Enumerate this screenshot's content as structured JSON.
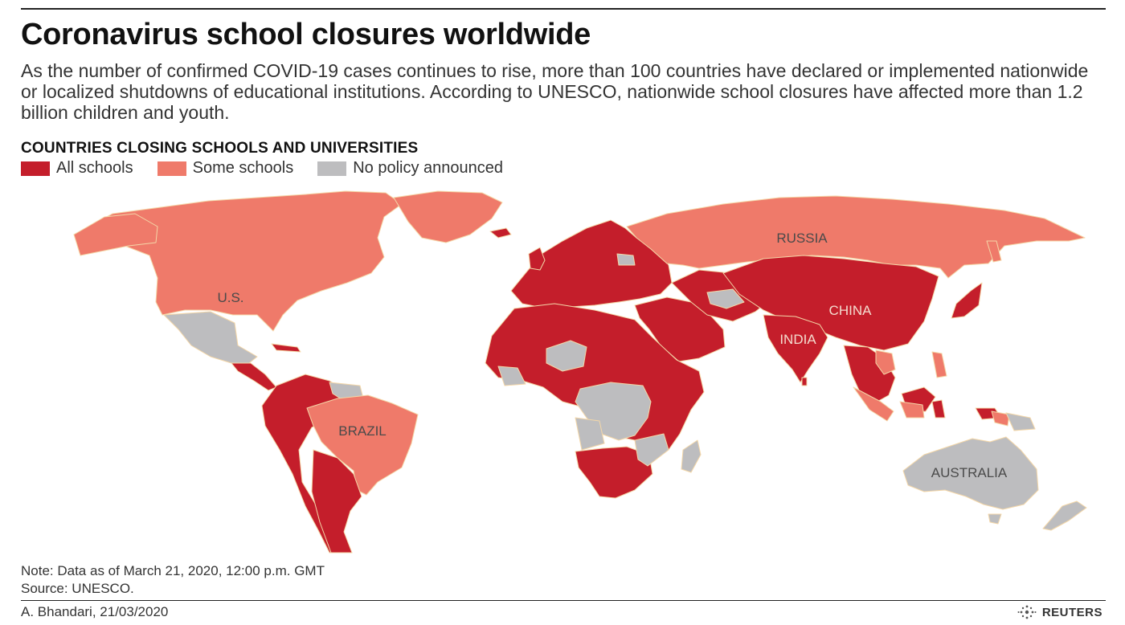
{
  "header": {
    "title": "Coronavirus school closures worldwide",
    "subtitle": "As the number of confirmed COVID-19 cases continues to rise, more than 100 countries have declared or implemented nationwide or localized shutdowns of educational institutions. According to UNESCO, nationwide school closures have affected more than 1.2 billion children and youth."
  },
  "map": {
    "section_title": "COUNTRIES CLOSING SCHOOLS AND UNIVERSITIES",
    "legend": [
      {
        "label": "All schools",
        "color": "#c41e2b"
      },
      {
        "label": "Some schools",
        "color": "#ef7a6a"
      },
      {
        "label": "No policy announced",
        "color": "#bdbdbf"
      }
    ],
    "country_labels": {
      "us": "U.S.",
      "russia": "RUSSIA",
      "brazil": "BRAZIL",
      "china": "CHINA",
      "india": "INDIA",
      "australia": "AUSTRALIA"
    }
  },
  "footer": {
    "note": "Note: Data as of March 21, 2020, 12:00 p.m. GMT",
    "source": "Source: UNESCO.",
    "credit": "A. Bhandari, 21/03/2020",
    "brand": "REUTERS",
    "brand_icon": "reuters-logo-icon"
  }
}
